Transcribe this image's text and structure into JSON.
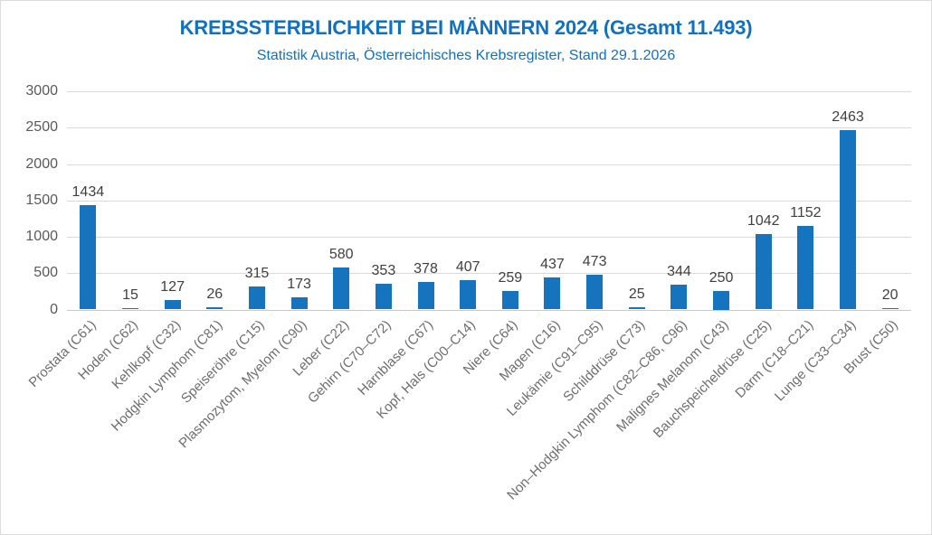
{
  "chart_data": {
    "type": "bar",
    "title": "KREBSSTERBLICHKEIT BEI MÄNNERN 2024 (Gesamt 11.493)",
    "subtitle": "Statistik Austria, Österreichisches Krebsregister, Stand 29.1.2026",
    "categories": [
      "Prostata (C61)",
      "Hoden (C62)",
      "Kehlkopf (C32)",
      "Hodgkin Lymphom (C81)",
      "Speiseröhre (C15)",
      "Plasmozytom, Myelom (C90)",
      "Leber (C22)",
      "Gehirn (C70–C72)",
      "Harnblase (C67)",
      "Kopf, Hals (C00–C14)",
      "Niere (C64)",
      "Magen (C16)",
      "Leukämie (C91–C95)",
      "Schilddrüse (C73)",
      "Non–Hodgkin Lymphom (C82–C86, C96)",
      "Malignes Melanom (C43)",
      "Bauchspeicheldrüse (C25)",
      "Darm (C18–C21)",
      "Lunge (C33–C34)",
      "Brust (C50)"
    ],
    "values": [
      1434,
      15,
      127,
      26,
      315,
      173,
      580,
      353,
      378,
      407,
      259,
      437,
      473,
      25,
      344,
      250,
      1042,
      1152,
      2463,
      20
    ],
    "data_labels_shown": true,
    "xlabel": "",
    "ylabel": "",
    "ylim": [
      0,
      3000
    ],
    "yticks": [
      0,
      500,
      1000,
      1500,
      2000,
      2500,
      3000
    ],
    "grid": true,
    "legend": "none",
    "colors": {
      "bar": "#1574bd",
      "title": "#1071c1",
      "grid": "#d9d9d9",
      "axis_line": "#c9c9c9",
      "tick_label": "#595959",
      "category_label": "#6e6e6e",
      "data_label": "#3f3f3f",
      "background": "#ffffff",
      "border": "#dcdcdc"
    }
  }
}
